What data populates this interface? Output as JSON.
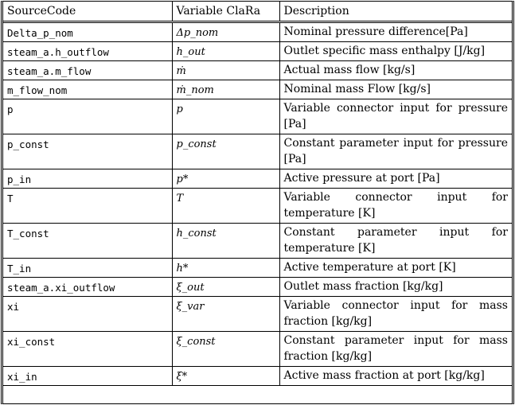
{
  "table": {
    "headers": [
      "SourceCode",
      "Variable ClaRa",
      "Description"
    ],
    "rows": [
      {
        "code": "Delta_p_nom",
        "variable": "Δp_nom",
        "description": "Nominal pressure difference[Pa]"
      },
      {
        "code": "steam_a.h_outflow",
        "variable": "h_out",
        "description": "Outlet specific mass enthalpy [J/kg]"
      },
      {
        "code": "steam_a.m_flow",
        "variable": "ṁ",
        "description": "Actual mass flow [kg/s]"
      },
      {
        "code": "m_flow_nom",
        "variable": "ṁ_nom",
        "description": "Nominal mass Flow [kg/s]"
      },
      {
        "code": "p",
        "variable": "p",
        "description": "Variable connector input for pressure [Pa]"
      },
      {
        "code": "p_const",
        "variable": "p_const",
        "description": "Constant parameter input for pressure [Pa]"
      },
      {
        "code": "p_in",
        "variable": "p*",
        "description": "Active pressure at port [Pa]"
      },
      {
        "code": "T",
        "variable": "T",
        "description": "Variable connector input for temperature [K]"
      },
      {
        "code": "T_const",
        "variable": "h_const",
        "description": "Constant parameter input for temperature [K]"
      },
      {
        "code": "T_in",
        "variable": "h*",
        "description": "Active temperature at port [K]"
      },
      {
        "code": "steam_a.xi_outflow",
        "variable": "ξ_out",
        "description": "Outlet mass fraction [kg/kg]"
      },
      {
        "code": "xi",
        "variable": "ξ_var",
        "description": "Variable connector input for mass fraction [kg/kg]"
      },
      {
        "code": "xi_const",
        "variable": "ξ_const",
        "description": "Constant parameter input for mass fraction [kg/kg]"
      },
      {
        "code": "xi_in",
        "variable": "ξ*",
        "description": "Active mass fraction at port [kg/kg]"
      }
    ]
  }
}
